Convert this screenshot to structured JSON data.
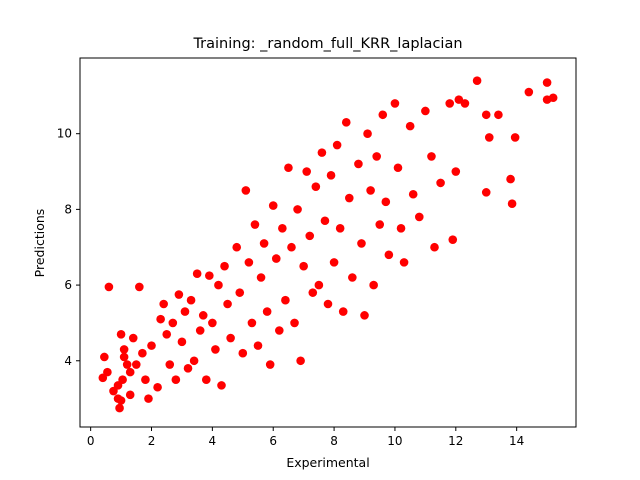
{
  "chart_data": {
    "type": "scatter",
    "title": "Training: _random_full_KRR_laplacian",
    "xlabel": "Experimental",
    "ylabel": "Predictions",
    "xlim": [
      -0.35,
      15.95
    ],
    "ylim": [
      2.25,
      12.0
    ],
    "xticks": [
      0,
      2,
      4,
      6,
      8,
      10,
      12,
      14
    ],
    "yticks": [
      4,
      6,
      8,
      10
    ],
    "grid": false,
    "legend": "none",
    "marker_color": "#ff0000",
    "series": [
      {
        "points": [
          [
            0.45,
            4.1
          ],
          [
            0.4,
            3.55
          ],
          [
            0.55,
            3.7
          ],
          [
            0.6,
            5.95
          ],
          [
            0.75,
            3.2
          ],
          [
            0.9,
            3.0
          ],
          [
            0.9,
            3.35
          ],
          [
            0.95,
            2.75
          ],
          [
            1.0,
            4.7
          ],
          [
            1.0,
            2.95
          ],
          [
            1.05,
            3.5
          ],
          [
            1.1,
            4.3
          ],
          [
            1.1,
            4.1
          ],
          [
            1.2,
            3.9
          ],
          [
            1.3,
            3.1
          ],
          [
            1.3,
            3.7
          ],
          [
            1.4,
            4.6
          ],
          [
            1.5,
            3.9
          ],
          [
            1.6,
            5.95
          ],
          [
            1.7,
            4.2
          ],
          [
            1.8,
            3.5
          ],
          [
            1.9,
            3.0
          ],
          [
            2.0,
            4.4
          ],
          [
            2.2,
            3.3
          ],
          [
            2.3,
            5.1
          ],
          [
            2.4,
            5.5
          ],
          [
            2.5,
            4.7
          ],
          [
            2.6,
            3.9
          ],
          [
            2.7,
            5.0
          ],
          [
            2.8,
            3.5
          ],
          [
            2.9,
            5.75
          ],
          [
            3.0,
            4.5
          ],
          [
            3.1,
            5.3
          ],
          [
            3.2,
            3.8
          ],
          [
            3.3,
            5.6
          ],
          [
            3.4,
            4.0
          ],
          [
            3.5,
            6.3
          ],
          [
            3.6,
            4.8
          ],
          [
            3.7,
            5.2
          ],
          [
            3.8,
            3.5
          ],
          [
            3.9,
            6.25
          ],
          [
            4.0,
            5.0
          ],
          [
            4.1,
            4.3
          ],
          [
            4.2,
            6.0
          ],
          [
            4.3,
            3.35
          ],
          [
            4.4,
            6.5
          ],
          [
            4.5,
            5.5
          ],
          [
            4.6,
            4.6
          ],
          [
            4.8,
            7.0
          ],
          [
            4.9,
            5.8
          ],
          [
            5.0,
            4.2
          ],
          [
            5.1,
            8.5
          ],
          [
            5.2,
            6.6
          ],
          [
            5.3,
            5.0
          ],
          [
            5.4,
            7.6
          ],
          [
            5.5,
            4.4
          ],
          [
            5.6,
            6.2
          ],
          [
            5.7,
            7.1
          ],
          [
            5.8,
            5.3
          ],
          [
            5.9,
            3.9
          ],
          [
            6.0,
            8.1
          ],
          [
            6.1,
            6.7
          ],
          [
            6.2,
            4.8
          ],
          [
            6.3,
            7.5
          ],
          [
            6.4,
            5.6
          ],
          [
            6.5,
            9.1
          ],
          [
            6.6,
            7.0
          ],
          [
            6.7,
            5.0
          ],
          [
            6.8,
            8.0
          ],
          [
            6.9,
            4.0
          ],
          [
            7.0,
            6.5
          ],
          [
            7.1,
            9.0
          ],
          [
            7.2,
            7.3
          ],
          [
            7.3,
            5.8
          ],
          [
            7.4,
            8.6
          ],
          [
            7.5,
            6.0
          ],
          [
            7.6,
            9.5
          ],
          [
            7.7,
            7.7
          ],
          [
            7.8,
            5.5
          ],
          [
            7.9,
            8.9
          ],
          [
            8.0,
            6.6
          ],
          [
            8.1,
            9.7
          ],
          [
            8.2,
            7.5
          ],
          [
            8.3,
            5.3
          ],
          [
            8.4,
            10.3
          ],
          [
            8.5,
            8.3
          ],
          [
            8.6,
            6.2
          ],
          [
            8.8,
            9.2
          ],
          [
            8.9,
            7.1
          ],
          [
            9.0,
            5.2
          ],
          [
            9.1,
            10.0
          ],
          [
            9.2,
            8.5
          ],
          [
            9.3,
            6.0
          ],
          [
            9.4,
            9.4
          ],
          [
            9.5,
            7.6
          ],
          [
            9.6,
            10.5
          ],
          [
            9.7,
            8.2
          ],
          [
            9.8,
            6.8
          ],
          [
            10.0,
            10.8
          ],
          [
            10.1,
            9.1
          ],
          [
            10.2,
            7.5
          ],
          [
            10.3,
            6.6
          ],
          [
            10.5,
            10.2
          ],
          [
            10.6,
            8.4
          ],
          [
            10.8,
            7.8
          ],
          [
            11.0,
            10.6
          ],
          [
            11.2,
            9.4
          ],
          [
            11.3,
            7.0
          ],
          [
            11.5,
            8.7
          ],
          [
            11.8,
            10.8
          ],
          [
            12.0,
            9.0
          ],
          [
            11.9,
            7.2
          ],
          [
            12.1,
            10.9
          ],
          [
            12.3,
            10.8
          ],
          [
            12.7,
            11.4
          ],
          [
            13.0,
            8.45
          ],
          [
            13.0,
            10.5
          ],
          [
            13.1,
            9.9
          ],
          [
            13.4,
            10.5
          ],
          [
            13.8,
            8.8
          ],
          [
            13.85,
            8.15
          ],
          [
            13.95,
            9.9
          ],
          [
            14.4,
            11.1
          ],
          [
            15.0,
            11.35
          ],
          [
            15.0,
            10.9
          ],
          [
            15.2,
            10.95
          ]
        ]
      }
    ]
  }
}
